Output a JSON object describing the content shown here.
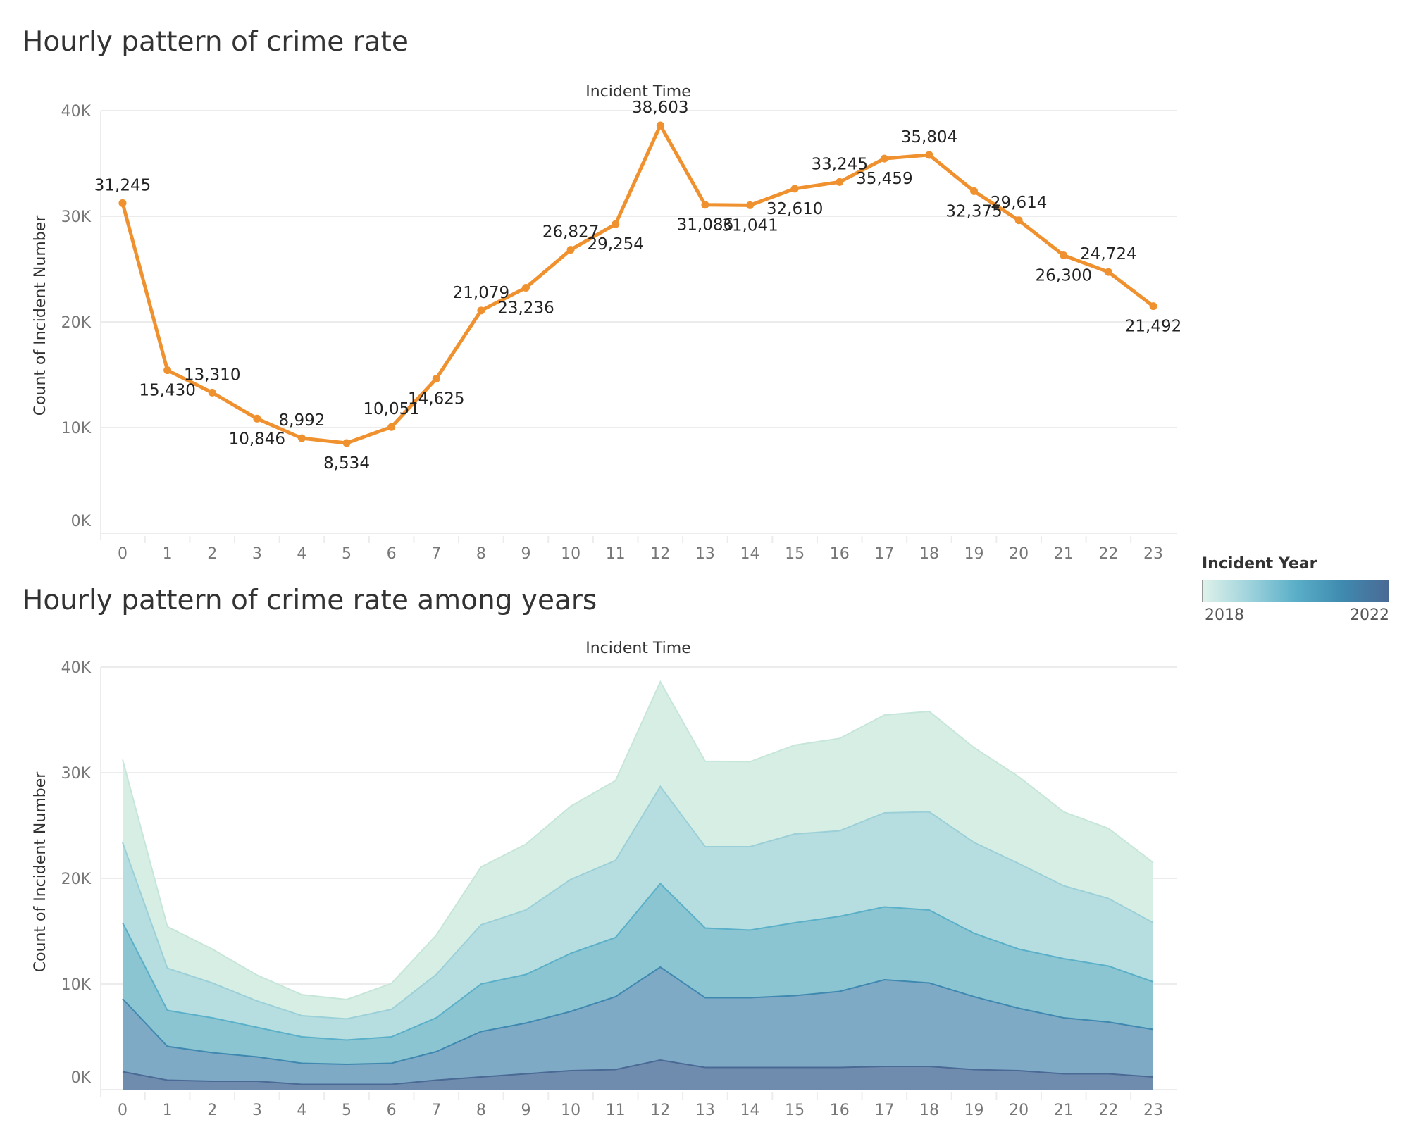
{
  "colors": {
    "line": "#f0912f",
    "grid": "#ececec",
    "axis_tick": "#777777",
    "year_fills": [
      "#d6eee4",
      "#b6dde0",
      "#8bc5d2",
      "#7faac6",
      "#6f8cae"
    ],
    "year_strokes": [
      "#c7e6da",
      "#9cd0d8",
      "#5ab0c8",
      "#3f88b0",
      "#4a6a95"
    ]
  },
  "charts": {
    "top": {
      "title": "Hourly pattern of crime rate",
      "xlabel": "Incident Time",
      "ylabel": "Count of Incident Number"
    },
    "bottom": {
      "title": "Hourly pattern of crime rate among years",
      "xlabel": "Incident Time",
      "ylabel": "Count of Incident Number"
    }
  },
  "legend": {
    "title": "Incident Year",
    "min": "2018",
    "max": "2022"
  },
  "chart_data": [
    {
      "type": "line",
      "title": "Hourly pattern of crime rate",
      "xlabel": "Incident Time",
      "ylabel": "Count of Incident Number",
      "x": [
        0,
        1,
        2,
        3,
        4,
        5,
        6,
        7,
        8,
        9,
        10,
        11,
        12,
        13,
        14,
        15,
        16,
        17,
        18,
        19,
        20,
        21,
        22,
        23
      ],
      "values": [
        31245,
        15430,
        13310,
        10846,
        8992,
        8534,
        10051,
        14625,
        21079,
        23236,
        26827,
        29254,
        38603,
        31086,
        31041,
        32610,
        33245,
        35459,
        35804,
        32375,
        29614,
        26300,
        24724,
        21492
      ],
      "data_labels": [
        "31,245",
        "15,430",
        "13,310",
        "10,846",
        "8,992",
        "8,534",
        "10,051",
        "14,625",
        "21,079",
        "23,236",
        "26,827",
        "29,254",
        "38,603",
        "31,086",
        "31,041",
        "32,610",
        "33,245",
        "35,459",
        "35,804",
        "32,375",
        "29,614",
        "26,300",
        "24,724",
        "21,492"
      ],
      "yticks": [
        0,
        10000,
        20000,
        30000,
        40000
      ],
      "ytick_labels": [
        "0K",
        "10K",
        "20K",
        "30K",
        "40K"
      ],
      "ylim": [
        0,
        40000
      ],
      "grid": true
    },
    {
      "type": "area",
      "title": "Hourly pattern of crime rate among years",
      "xlabel": "Incident Time",
      "ylabel": "Count of Incident Number",
      "x": [
        0,
        1,
        2,
        3,
        4,
        5,
        6,
        7,
        8,
        9,
        10,
        11,
        12,
        13,
        14,
        15,
        16,
        17,
        18,
        19,
        20,
        21,
        22,
        23
      ],
      "stacked": true,
      "color_scale": "Incident Year",
      "series": [
        {
          "cumulative": [
            31245,
            15430,
            13310,
            10846,
            8992,
            8534,
            10051,
            14625,
            21079,
            23236,
            26827,
            29254,
            38603,
            31086,
            31041,
            32610,
            33245,
            35459,
            35804,
            32375,
            29614,
            26300,
            24724,
            21492
          ]
        },
        {
          "cumulative": [
            23400,
            11500,
            10100,
            8400,
            7000,
            6700,
            7600,
            10900,
            15600,
            17000,
            19900,
            21700,
            28700,
            23000,
            23000,
            24200,
            24500,
            26200,
            26300,
            23400,
            21400,
            19300,
            18100,
            15800
          ]
        },
        {
          "cumulative": [
            15800,
            7500,
            6800,
            5900,
            5000,
            4700,
            5000,
            6800,
            10000,
            10900,
            12900,
            14400,
            19500,
            15300,
            15100,
            15800,
            16400,
            17300,
            17000,
            14800,
            13300,
            12400,
            11700,
            10200
          ]
        },
        {
          "cumulative": [
            8600,
            4100,
            3500,
            3100,
            2500,
            2400,
            2500,
            3600,
            5500,
            6300,
            7400,
            8800,
            11600,
            8700,
            8700,
            8900,
            9300,
            10400,
            10100,
            8800,
            7700,
            6800,
            6400,
            5700
          ]
        },
        {
          "cumulative": [
            1700,
            900,
            800,
            800,
            500,
            500,
            500,
            900,
            1200,
            1500,
            1800,
            1900,
            2800,
            2100,
            2100,
            2100,
            2100,
            2200,
            2200,
            1900,
            1800,
            1500,
            1500,
            1200
          ]
        }
      ],
      "yticks": [
        0,
        10000,
        20000,
        30000,
        40000
      ],
      "ytick_labels": [
        "0K",
        "10K",
        "20K",
        "30K",
        "40K"
      ],
      "ylim": [
        0,
        40000
      ],
      "grid": true
    }
  ]
}
